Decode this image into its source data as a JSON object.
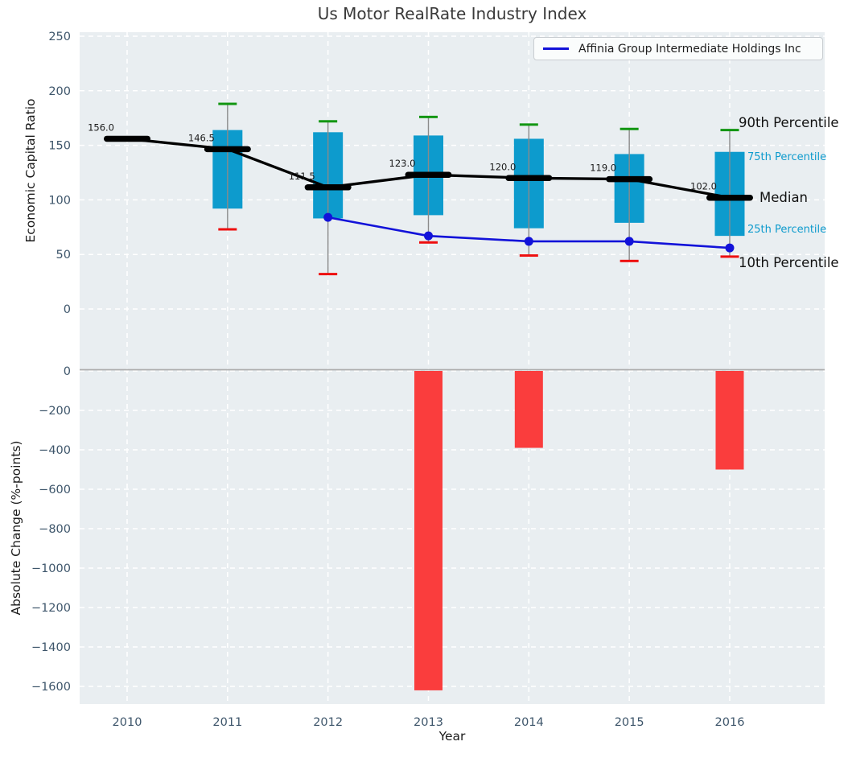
{
  "title": "Us Motor RealRate Industry Index",
  "legend": {
    "series_label": "Affinia Group Intermediate Holdings Inc"
  },
  "annotations": {
    "p90": "90th Percentile",
    "p75": "75th Percentile",
    "median": "Median",
    "p25": "25th Percentile",
    "p10": "10th Percentile"
  },
  "axes": {
    "top": {
      "ylabel": "Economic Capital Ratio",
      "yticks": [
        250,
        200,
        150,
        100,
        50,
        0
      ]
    },
    "bottom": {
      "ylabel": "Absolute Change (%-points)",
      "xlabel": "Year",
      "yticks": [
        0,
        -200,
        -400,
        -600,
        -800,
        -1000,
        -1200,
        -1400,
        -1600
      ]
    }
  },
  "chart_data": [
    {
      "type": "boxplot",
      "title": "Us Motor RealRate Industry Index",
      "ylabel": "Economic Capital Ratio",
      "ylim": [
        -42,
        250
      ],
      "yticks": [
        250,
        200,
        150,
        100,
        50,
        0
      ],
      "grid": true,
      "categories": [
        2010,
        2011,
        2012,
        2013,
        2014,
        2015,
        2016
      ],
      "boxes": [
        {
          "year": 2010,
          "p10": null,
          "p25": null,
          "median": 156.0,
          "p75": null,
          "p90": null,
          "median_label": "156.0"
        },
        {
          "year": 2011,
          "p10": 73,
          "p25": 92,
          "median": 146.5,
          "p75": 164,
          "p90": 188,
          "median_label": "146.5"
        },
        {
          "year": 2012,
          "p10": 32,
          "p25": 83,
          "median": 111.5,
          "p75": 162,
          "p90": 172,
          "median_label": "111.5"
        },
        {
          "year": 2013,
          "p10": 61,
          "p25": 86,
          "median": 123.0,
          "p75": 159,
          "p90": 176,
          "median_label": "123.0"
        },
        {
          "year": 2014,
          "p10": 49,
          "p25": 74,
          "median": 120.0,
          "p75": 156,
          "p90": 169,
          "median_label": "120.0"
        },
        {
          "year": 2015,
          "p10": 44,
          "p25": 79,
          "median": 119.0,
          "p75": 142,
          "p90": 165,
          "median_label": "119.0"
        },
        {
          "year": 2016,
          "p10": 48,
          "p25": 67,
          "median": 102.0,
          "p75": 144,
          "p90": 164,
          "median_label": "102.0"
        }
      ],
      "series": [
        {
          "name": "Affinia Group Intermediate Holdings Inc",
          "x": [
            2012,
            2013,
            2014,
            2015,
            2016
          ],
          "y": [
            84,
            67,
            62,
            62,
            56
          ]
        }
      ]
    },
    {
      "type": "bar",
      "ylabel": "Absolute Change (%-points)",
      "xlabel": "Year",
      "ylim": [
        -1690,
        100
      ],
      "yticks": [
        0,
        -200,
        -400,
        -600,
        -800,
        -1000,
        -1200,
        -1400,
        -1600
      ],
      "grid": true,
      "categories": [
        2010,
        2011,
        2012,
        2013,
        2014,
        2015,
        2016
      ],
      "values": [
        null,
        null,
        null,
        -1620,
        -390,
        null,
        -500
      ]
    }
  ],
  "colors": {
    "panel_bg": "#e9eef1",
    "grid": "#ffffff",
    "box_fill": "#0d9bcd",
    "whisker": "#8a8a8a",
    "cap_top": "#129612",
    "cap_bottom": "#ee0f0f",
    "median": "#000000",
    "company_line": "#1212d9",
    "bar": "#fa3d3d",
    "zero_line": "#ababab",
    "tick_label": "#3e566b",
    "value_label": "#1a1a1a",
    "percentile_label_accent": "#0e9bcd"
  }
}
